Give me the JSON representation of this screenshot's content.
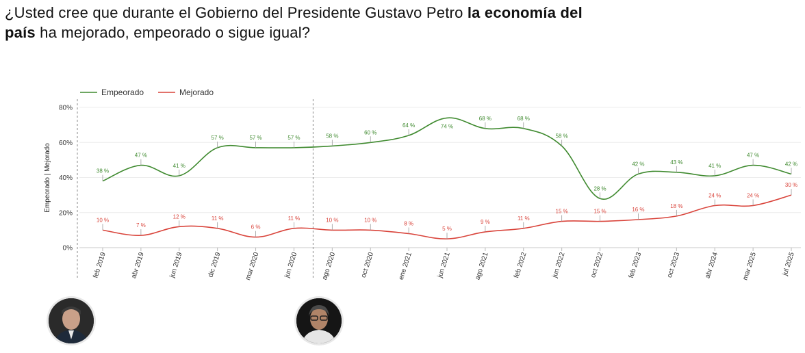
{
  "title": {
    "part1": "¿Usted cree que durante el Gobierno del Presidente Gustavo Petro ",
    "bold1": "la economía del",
    "bold2": "país",
    "part2": " ha mejorado, empeorado o sigue igual?"
  },
  "avatars": [
    {
      "name": "president-left-avatar"
    },
    {
      "name": "president-right-avatar"
    }
  ],
  "chart_data": {
    "type": "line",
    "title": "¿Usted cree que durante el Gobierno del Presidente Gustavo Petro la economía del país ha mejorado, empeorado o sigue igual?",
    "xlabel": "",
    "ylabel": "Empeorado | Mejorado",
    "ylim": [
      0,
      80
    ],
    "yticks": [
      "0%",
      "20%",
      "40%",
      "60%",
      "80%"
    ],
    "legend_position": "top-left",
    "categories": [
      "feb 2019",
      "abr 2019",
      "jun 2019",
      "dic 2019",
      "mar 2020",
      "jun 2020",
      "ago 2020",
      "oct 2020",
      "ene 2021",
      "jun 2021",
      "ago 2021",
      "feb 2022",
      "jun 2022",
      "oct 2022",
      "feb 2023",
      "oct 2023",
      "abr 2024",
      "mar 2025",
      "jul 2025"
    ],
    "dividers_after_category_index": [
      -1,
      5
    ],
    "series": [
      {
        "name": "Empeorado",
        "color": "#3f8a2f",
        "values": [
          38,
          47,
          41,
          57,
          57,
          57,
          58,
          60,
          64,
          74,
          68,
          68,
          58,
          28,
          42,
          43,
          41,
          47,
          42
        ],
        "labels": [
          "38 %",
          "47 %",
          "41 %",
          "57 %",
          "57 %",
          "57 %",
          "58 %",
          "60 %",
          "64 %",
          "74 %",
          "68 %",
          "68 %",
          "58 %",
          "28 %",
          "42 %",
          "43 %",
          "41 %",
          "47 %",
          "42 %"
        ]
      },
      {
        "name": "Mejorado",
        "color": "#d9433a",
        "values": [
          10,
          7,
          12,
          11,
          6,
          11,
          10,
          10,
          8,
          5,
          9,
          11,
          15,
          15,
          16,
          18,
          24,
          24,
          30
        ],
        "labels": [
          "10 %",
          "7 %",
          "12 %",
          "11 %",
          "6 %",
          "11 %",
          "10 %",
          "10 %",
          "8 %",
          "5 %",
          "9 %",
          "11 %",
          "15 %",
          "15 %",
          "16 %",
          "18 %",
          "24 %",
          "24 %",
          "30 %"
        ]
      }
    ]
  }
}
